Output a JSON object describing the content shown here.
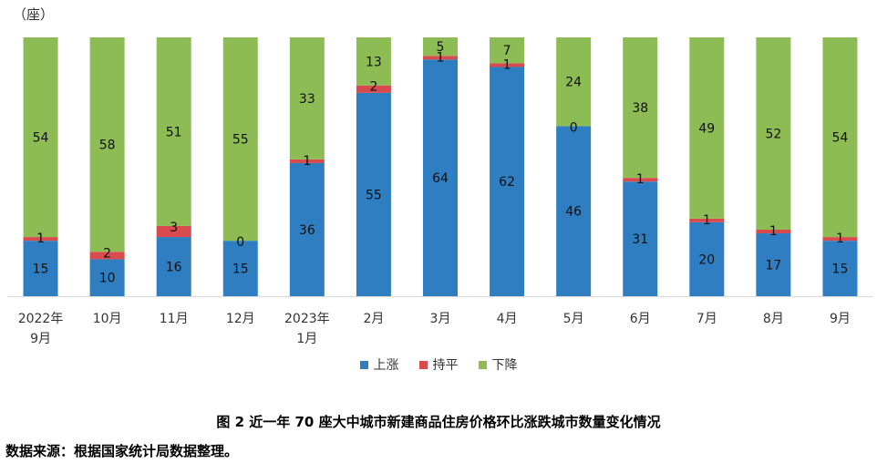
{
  "chart_data": {
    "type": "bar",
    "stacked": true,
    "unit_label": "（座）",
    "categories": [
      "2022年\n9月",
      "10月",
      "11月",
      "12月",
      "2023年\n1月",
      "2月",
      "3月",
      "4月",
      "5月",
      "6月",
      "7月",
      "8月",
      "9月"
    ],
    "series": [
      {
        "name": "上涨",
        "color": "#2E7EC1",
        "values": [
          15,
          10,
          16,
          15,
          36,
          55,
          64,
          62,
          46,
          31,
          20,
          17,
          15
        ]
      },
      {
        "name": "持平",
        "color": "#D84A4D",
        "values": [
          1,
          2,
          3,
          0,
          1,
          2,
          1,
          1,
          0,
          1,
          1,
          1,
          1
        ]
      },
      {
        "name": "下降",
        "color": "#8DBB54",
        "values": [
          54,
          58,
          51,
          55,
          33,
          13,
          5,
          7,
          24,
          38,
          49,
          52,
          54
        ]
      }
    ],
    "ylim": [
      0,
      70
    ],
    "legend_position": "bottom",
    "grid": false
  },
  "caption": "图 2   近一年 70 座大中城市新建商品住房价格环比涨跌城市数量变化情况",
  "source": "数据来源：根据国家统计局数据整理。"
}
